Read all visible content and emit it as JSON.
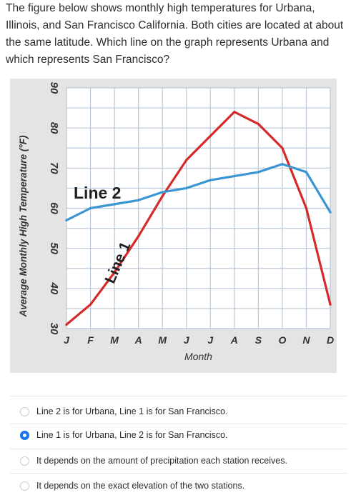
{
  "question": {
    "text": "The figure below shows monthly high temperatures for Urbana, Illinois, and San Francisco California. Both cities are located at about the same latitude. Which line on the graph represents Urbana and which represents San Francisco?"
  },
  "chart_data": {
    "type": "line",
    "xlabel": "Month",
    "ylabel": "Average Monthly High Temperature (°F)",
    "categories": [
      "J",
      "F",
      "M",
      "A",
      "M",
      "J",
      "J",
      "A",
      "S",
      "O",
      "N",
      "D"
    ],
    "ylim": [
      30,
      90
    ],
    "yticks": [
      30,
      40,
      50,
      60,
      70,
      80,
      90
    ],
    "grid": true,
    "series": [
      {
        "name": "Line 1",
        "color": "#d42a2a",
        "values": [
          31,
          36,
          44,
          53,
          63,
          72,
          78,
          84,
          81,
          75,
          60,
          36
        ]
      },
      {
        "name": "Line 2",
        "color": "#3a95d2",
        "values": [
          57,
          60,
          61,
          62,
          64,
          65,
          67,
          68,
          69,
          71,
          69,
          59
        ]
      }
    ]
  },
  "options": [
    {
      "label": "Line 2 is for Urbana, Line 1 is for San Francisco.",
      "selected": false
    },
    {
      "label": "Line 1 is for Urbana, Line 2 is for San Francisco.",
      "selected": true
    },
    {
      "label": "It depends on the amount of precipitation each station receives.",
      "selected": false
    },
    {
      "label": "It depends on the exact elevation of the two stations.",
      "selected": false
    }
  ]
}
